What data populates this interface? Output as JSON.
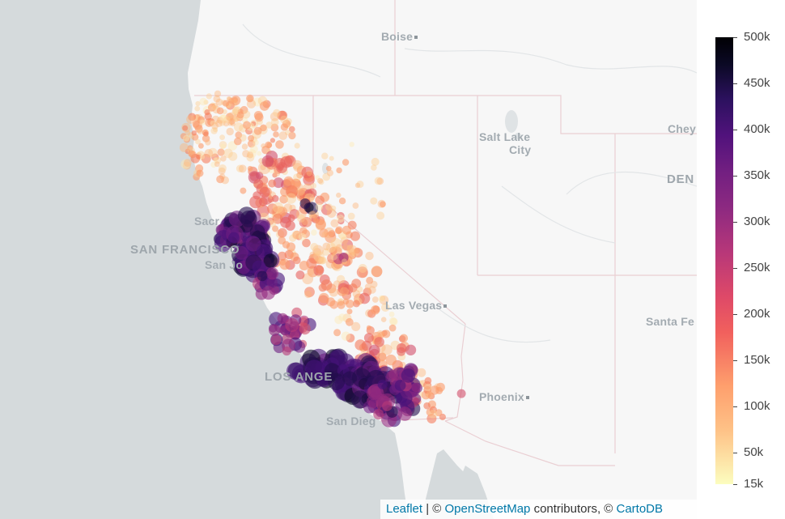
{
  "map": {
    "cities": [
      {
        "id": "boise",
        "label": "Boise"
      },
      {
        "id": "salt-lake-city-1",
        "label": "Salt Lake"
      },
      {
        "id": "salt-lake-city-2",
        "label": "City"
      },
      {
        "id": "cheyenne",
        "label": "Chey"
      },
      {
        "id": "denver",
        "label": "DEN"
      },
      {
        "id": "sacramento",
        "label": "Sacr"
      },
      {
        "id": "san-francisco",
        "label": "SAN FRANCISCO"
      },
      {
        "id": "san-jose",
        "label": "San Jo"
      },
      {
        "id": "las-vegas",
        "label": "Las Vegas"
      },
      {
        "id": "santa-fe",
        "label": "Santa Fe"
      },
      {
        "id": "los-angeles",
        "label": "LOS ANGE"
      },
      {
        "id": "phoenix",
        "label": "Phoenix"
      },
      {
        "id": "san-diego",
        "label": "San Dieg"
      }
    ],
    "marker_colorscale": "magma (reversed)",
    "colors": {
      "water": "#d5dadc",
      "land": "#f7f7f7",
      "state_borders": "#eacfd3",
      "link": "#0078a8"
    }
  },
  "attribution": {
    "leaflet": "Leaflet",
    "sep": " | © ",
    "osm": "OpenStreetMap",
    "contrib": " contributors, © ",
    "carto": "CartoDB"
  },
  "colorbar": {
    "ticks": [
      "500k",
      "450k",
      "400k",
      "350k",
      "300k",
      "250k",
      "200k",
      "150k",
      "100k",
      "50k",
      "15k"
    ],
    "min": 15000,
    "max": 500000
  }
}
